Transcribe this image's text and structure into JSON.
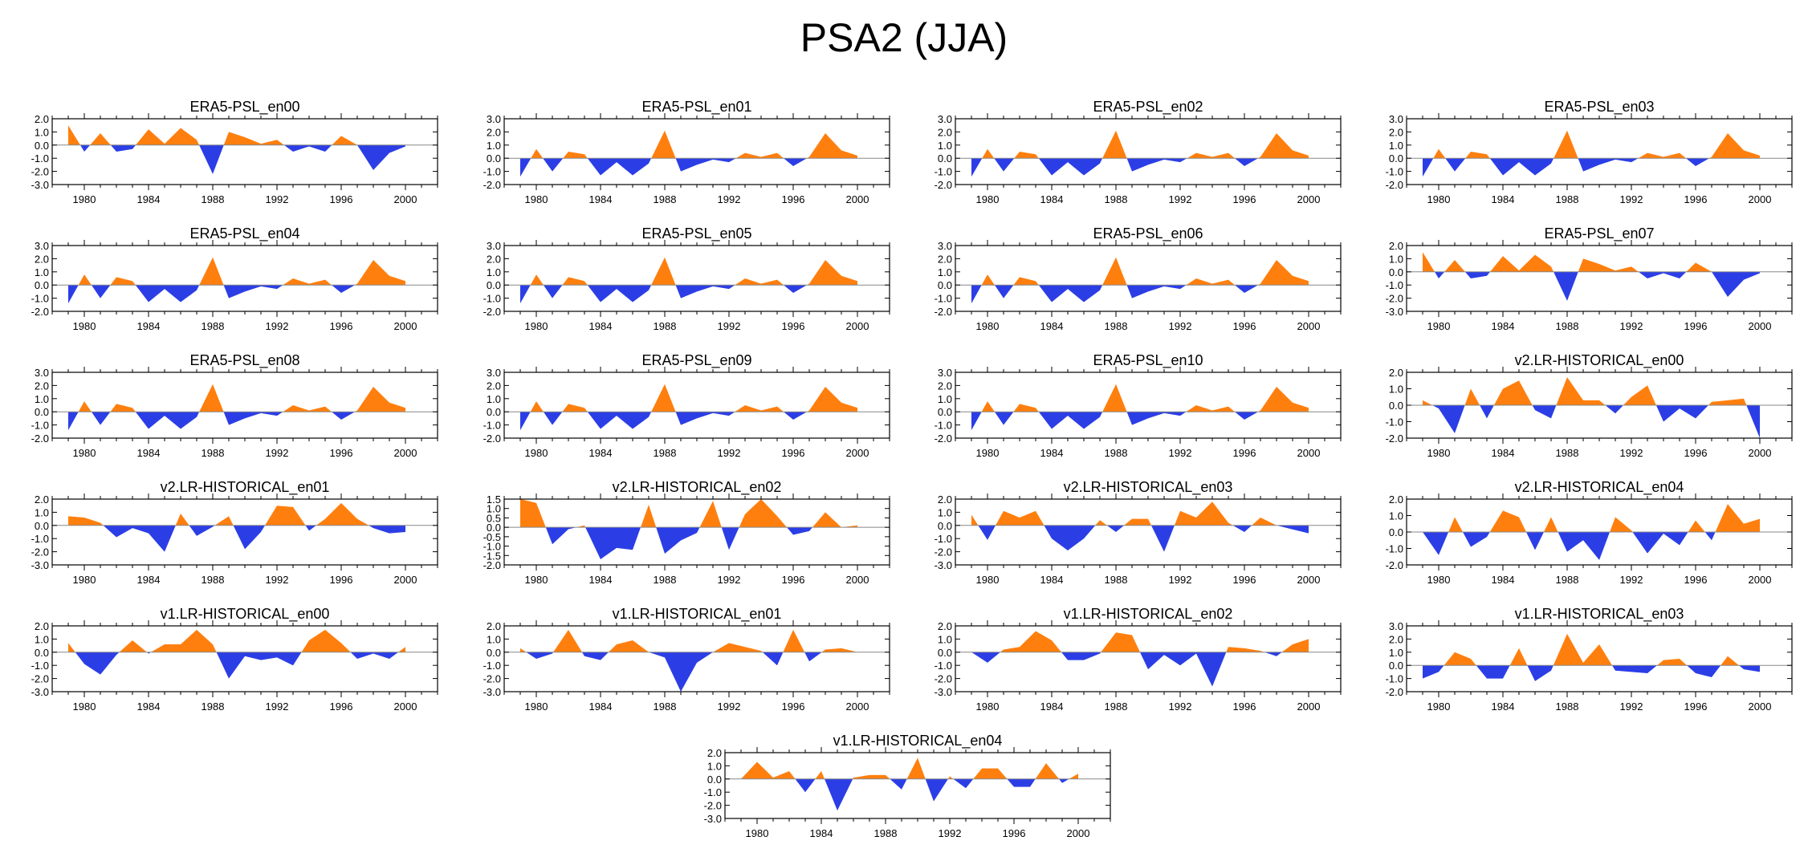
{
  "title": "PSA2 (JJA)",
  "colors": {
    "positive": "#ff7f0e",
    "negative": "#2b3ee6",
    "axis": "#000000"
  },
  "shared_years": [
    1979,
    1980,
    1981,
    1982,
    1983,
    1984,
    1985,
    1986,
    1987,
    1988,
    1989,
    1990,
    1991,
    1992,
    1993,
    1994,
    1995,
    1996,
    1997,
    1998,
    1999,
    2000
  ],
  "chart_data": [
    {
      "type": "area",
      "title": "ERA5-PSL_en00",
      "xlim": [
        1978,
        2002
      ],
      "ylim": [
        -3,
        2
      ],
      "yticks": [
        2,
        1,
        0,
        -1,
        -2,
        -3
      ],
      "ytick_labels": [
        "2.0",
        "1.0",
        "0.0",
        "-1.0",
        "-2.0",
        "-3.0"
      ],
      "xticks": [
        1980,
        1984,
        1988,
        1992,
        1996,
        2000
      ],
      "values": [
        1.5,
        -0.5,
        0.9,
        -0.5,
        -0.3,
        1.2,
        0.1,
        1.3,
        0.4,
        -2.2,
        1.0,
        0.6,
        0.1,
        0.4,
        -0.5,
        -0.1,
        -0.5,
        0.7,
        0.0,
        -1.9,
        -0.6,
        -0.1
      ]
    },
    {
      "type": "area",
      "title": "ERA5-PSL_en01",
      "xlim": [
        1978,
        2002
      ],
      "ylim": [
        -2,
        3
      ],
      "yticks": [
        3,
        2,
        1,
        0,
        -1,
        -2
      ],
      "ytick_labels": [
        "3.0",
        "2.0",
        "1.0",
        "0.0",
        "-1.0",
        "-2.0"
      ],
      "xticks": [
        1980,
        1984,
        1988,
        1992,
        1996,
        2000
      ],
      "values": [
        -1.4,
        0.7,
        -1.0,
        0.5,
        0.3,
        -1.3,
        -0.3,
        -1.3,
        -0.4,
        2.1,
        -1.0,
        -0.5,
        -0.1,
        -0.3,
        0.4,
        0.1,
        0.4,
        -0.6,
        0.1,
        1.9,
        0.6,
        0.2
      ]
    },
    {
      "type": "area",
      "title": "ERA5-PSL_en02",
      "xlim": [
        1978,
        2002
      ],
      "ylim": [
        -2,
        3
      ],
      "yticks": [
        3,
        2,
        1,
        0,
        -1,
        -2
      ],
      "ytick_labels": [
        "3.0",
        "2.0",
        "1.0",
        "0.0",
        "-1.0",
        "-2.0"
      ],
      "xticks": [
        1980,
        1984,
        1988,
        1992,
        1996,
        2000
      ],
      "values": [
        -1.4,
        0.7,
        -1.0,
        0.5,
        0.3,
        -1.3,
        -0.3,
        -1.3,
        -0.4,
        2.1,
        -1.0,
        -0.5,
        -0.1,
        -0.3,
        0.4,
        0.1,
        0.4,
        -0.6,
        0.1,
        1.9,
        0.6,
        0.2
      ]
    },
    {
      "type": "area",
      "title": "ERA5-PSL_en03",
      "xlim": [
        1978,
        2002
      ],
      "ylim": [
        -2,
        3
      ],
      "yticks": [
        3,
        2,
        1,
        0,
        -1,
        -2
      ],
      "ytick_labels": [
        "3.0",
        "2.0",
        "1.0",
        "0.0",
        "-1.0",
        "-2.0"
      ],
      "xticks": [
        1980,
        1984,
        1988,
        1992,
        1996,
        2000
      ],
      "values": [
        -1.4,
        0.7,
        -1.0,
        0.5,
        0.3,
        -1.3,
        -0.3,
        -1.3,
        -0.4,
        2.1,
        -1.0,
        -0.5,
        -0.1,
        -0.3,
        0.4,
        0.1,
        0.4,
        -0.6,
        0.1,
        1.9,
        0.6,
        0.2
      ]
    },
    {
      "type": "area",
      "title": "ERA5-PSL_en04",
      "xlim": [
        1978,
        2002
      ],
      "ylim": [
        -2,
        3
      ],
      "yticks": [
        3,
        2,
        1,
        0,
        -1,
        -2
      ],
      "ytick_labels": [
        "3.0",
        "2.0",
        "1.0",
        "0.0",
        "-1.0",
        "-2.0"
      ],
      "xticks": [
        1980,
        1984,
        1988,
        1992,
        1996,
        2000
      ],
      "values": [
        -1.4,
        0.8,
        -1.0,
        0.6,
        0.3,
        -1.3,
        -0.3,
        -1.3,
        -0.4,
        2.1,
        -1.0,
        -0.5,
        -0.1,
        -0.3,
        0.5,
        0.1,
        0.4,
        -0.6,
        0.1,
        1.9,
        0.7,
        0.3
      ]
    },
    {
      "type": "area",
      "title": "ERA5-PSL_en05",
      "xlim": [
        1978,
        2002
      ],
      "ylim": [
        -2,
        3
      ],
      "yticks": [
        3,
        2,
        1,
        0,
        -1,
        -2
      ],
      "ytick_labels": [
        "3.0",
        "2.0",
        "1.0",
        "0.0",
        "-1.0",
        "-2.0"
      ],
      "xticks": [
        1980,
        1984,
        1988,
        1992,
        1996,
        2000
      ],
      "values": [
        -1.4,
        0.8,
        -1.0,
        0.6,
        0.3,
        -1.3,
        -0.3,
        -1.3,
        -0.4,
        2.1,
        -1.0,
        -0.5,
        -0.1,
        -0.3,
        0.5,
        0.1,
        0.4,
        -0.6,
        0.1,
        1.9,
        0.7,
        0.3
      ]
    },
    {
      "type": "area",
      "title": "ERA5-PSL_en06",
      "xlim": [
        1978,
        2002
      ],
      "ylim": [
        -2,
        3
      ],
      "yticks": [
        3,
        2,
        1,
        0,
        -1,
        -2
      ],
      "ytick_labels": [
        "3.0",
        "2.0",
        "1.0",
        "0.0",
        "-1.0",
        "-2.0"
      ],
      "xticks": [
        1980,
        1984,
        1988,
        1992,
        1996,
        2000
      ],
      "values": [
        -1.4,
        0.8,
        -1.0,
        0.6,
        0.3,
        -1.3,
        -0.3,
        -1.3,
        -0.4,
        2.1,
        -1.0,
        -0.5,
        -0.1,
        -0.3,
        0.5,
        0.1,
        0.4,
        -0.6,
        0.1,
        1.9,
        0.7,
        0.3
      ]
    },
    {
      "type": "area",
      "title": "ERA5-PSL_en07",
      "xlim": [
        1978,
        2002
      ],
      "ylim": [
        -3,
        2
      ],
      "yticks": [
        2,
        1,
        0,
        -1,
        -2,
        -3
      ],
      "ytick_labels": [
        "2.0",
        "1.0",
        "0.0",
        "-1.0",
        "-2.0",
        "-3.0"
      ],
      "xticks": [
        1980,
        1984,
        1988,
        1992,
        1996,
        2000
      ],
      "values": [
        1.5,
        -0.5,
        0.9,
        -0.5,
        -0.3,
        1.2,
        0.1,
        1.3,
        0.4,
        -2.2,
        1.0,
        0.6,
        0.1,
        0.4,
        -0.5,
        -0.1,
        -0.5,
        0.7,
        0.0,
        -1.9,
        -0.6,
        -0.1
      ]
    },
    {
      "type": "area",
      "title": "ERA5-PSL_en08",
      "xlim": [
        1978,
        2002
      ],
      "ylim": [
        -2,
        3
      ],
      "yticks": [
        3,
        2,
        1,
        0,
        -1,
        -2
      ],
      "ytick_labels": [
        "3.0",
        "2.0",
        "1.0",
        "0.0",
        "-1.0",
        "-2.0"
      ],
      "xticks": [
        1980,
        1984,
        1988,
        1992,
        1996,
        2000
      ],
      "values": [
        -1.4,
        0.8,
        -1.0,
        0.6,
        0.3,
        -1.3,
        -0.3,
        -1.3,
        -0.4,
        2.1,
        -1.0,
        -0.5,
        -0.1,
        -0.3,
        0.5,
        0.1,
        0.4,
        -0.6,
        0.1,
        1.9,
        0.7,
        0.3
      ]
    },
    {
      "type": "area",
      "title": "ERA5-PSL_en09",
      "xlim": [
        1978,
        2002
      ],
      "ylim": [
        -2,
        3
      ],
      "yticks": [
        3,
        2,
        1,
        0,
        -1,
        -2
      ],
      "ytick_labels": [
        "3.0",
        "2.0",
        "1.0",
        "0.0",
        "-1.0",
        "-2.0"
      ],
      "xticks": [
        1980,
        1984,
        1988,
        1992,
        1996,
        2000
      ],
      "values": [
        -1.4,
        0.8,
        -1.0,
        0.6,
        0.3,
        -1.3,
        -0.3,
        -1.3,
        -0.4,
        2.1,
        -1.0,
        -0.5,
        -0.1,
        -0.3,
        0.5,
        0.1,
        0.4,
        -0.6,
        0.1,
        1.9,
        0.7,
        0.3
      ]
    },
    {
      "type": "area",
      "title": "ERA5-PSL_en10",
      "xlim": [
        1978,
        2002
      ],
      "ylim": [
        -2,
        3
      ],
      "yticks": [
        3,
        2,
        1,
        0,
        -1,
        -2
      ],
      "ytick_labels": [
        "3.0",
        "2.0",
        "1.0",
        "0.0",
        "-1.0",
        "-2.0"
      ],
      "xticks": [
        1980,
        1984,
        1988,
        1992,
        1996,
        2000
      ],
      "values": [
        -1.4,
        0.8,
        -1.0,
        0.6,
        0.3,
        -1.3,
        -0.3,
        -1.3,
        -0.4,
        2.1,
        -1.0,
        -0.5,
        -0.1,
        -0.3,
        0.5,
        0.1,
        0.4,
        -0.6,
        0.1,
        1.9,
        0.7,
        0.3
      ]
    },
    {
      "type": "area",
      "title": "v2.LR-HISTORICAL_en00",
      "xlim": [
        1978,
        2002
      ],
      "ylim": [
        -2,
        2
      ],
      "yticks": [
        2,
        1,
        0,
        -1,
        -2
      ],
      "ytick_labels": [
        "2.0",
        "1.0",
        "0.0",
        "-1.0",
        "-2.0"
      ],
      "xticks": [
        1980,
        1984,
        1988,
        1992,
        1996,
        2000
      ],
      "values": [
        0.3,
        -0.2,
        -1.7,
        1.0,
        -0.8,
        1.0,
        1.5,
        -0.3,
        -0.8,
        1.7,
        0.3,
        0.3,
        -0.5,
        0.5,
        1.2,
        -1.0,
        -0.2,
        -0.8,
        0.2,
        0.3,
        0.4,
        -2.0
      ]
    },
    {
      "type": "area",
      "title": "v2.LR-HISTORICAL_en01",
      "xlim": [
        1978,
        2002
      ],
      "ylim": [
        -3,
        2
      ],
      "yticks": [
        2,
        1,
        0,
        -1,
        -2,
        -3
      ],
      "ytick_labels": [
        "2.0",
        "1.0",
        "0.0",
        "-1.0",
        "-2.0",
        "-3.0"
      ],
      "xticks": [
        1980,
        1984,
        1988,
        1992,
        1996,
        2000
      ],
      "values": [
        0.7,
        0.6,
        0.2,
        -0.9,
        -0.2,
        -0.6,
        -2.0,
        0.9,
        -0.8,
        -0.1,
        0.7,
        -1.8,
        -0.5,
        1.5,
        1.4,
        -0.4,
        0.5,
        1.7,
        0.5,
        -0.2,
        -0.6,
        -0.5
      ]
    },
    {
      "type": "area",
      "title": "v2.LR-HISTORICAL_en02",
      "xlim": [
        1978,
        2002
      ],
      "ylim": [
        -2,
        1.5
      ],
      "yticks": [
        1.5,
        1,
        0.5,
        0,
        -0.5,
        -1,
        -1.5,
        -2
      ],
      "ytick_labels": [
        "1.5",
        "1.0",
        "0.5",
        "0.0",
        "-0.5",
        "-1.0",
        "-1.5",
        "-2.0"
      ],
      "xticks": [
        1980,
        1984,
        1988,
        1992,
        1996,
        2000
      ],
      "values": [
        1.5,
        1.3,
        -0.9,
        -0.1,
        0.1,
        -1.7,
        -1.1,
        -1.2,
        1.2,
        -1.4,
        -0.7,
        -0.3,
        1.4,
        -1.2,
        0.7,
        1.5,
        0.6,
        -0.4,
        -0.2,
        0.8,
        0.0,
        0.1
      ]
    },
    {
      "type": "area",
      "title": "v2.LR-HISTORICAL_en03",
      "xlim": [
        1978,
        2002
      ],
      "ylim": [
        -3,
        2
      ],
      "yticks": [
        2,
        1,
        0,
        -1,
        -2,
        -3
      ],
      "ytick_labels": [
        "2.0",
        "1.0",
        "0.0",
        "-1.0",
        "-2.0",
        "-3.0"
      ],
      "xticks": [
        1980,
        1984,
        1988,
        1992,
        1996,
        2000
      ],
      "values": [
        0.8,
        -1.1,
        1.1,
        0.6,
        1.1,
        -1.0,
        -1.9,
        -1.0,
        0.4,
        -0.5,
        0.5,
        0.5,
        -2.0,
        1.1,
        0.6,
        1.8,
        0.2,
        -0.5,
        0.6,
        0.0,
        -0.3,
        -0.6
      ]
    },
    {
      "type": "area",
      "title": "v2.LR-HISTORICAL_en04",
      "xlim": [
        1978,
        2002
      ],
      "ylim": [
        -2,
        2
      ],
      "yticks": [
        2,
        1,
        0,
        -1,
        -2
      ],
      "ytick_labels": [
        "2.0",
        "1.0",
        "0.0",
        "-1.0",
        "-2.0"
      ],
      "xticks": [
        1980,
        1984,
        1988,
        1992,
        1996,
        2000
      ],
      "values": [
        0.0,
        -1.4,
        0.9,
        -0.9,
        -0.3,
        1.3,
        0.9,
        -1.1,
        0.9,
        -1.2,
        -0.5,
        -1.7,
        0.9,
        0.1,
        -1.3,
        -0.1,
        -0.8,
        0.7,
        -0.5,
        1.7,
        0.5,
        0.8
      ]
    },
    {
      "type": "area",
      "title": "v1.LR-HISTORICAL_en00",
      "xlim": [
        1978,
        2002
      ],
      "ylim": [
        -3,
        2
      ],
      "yticks": [
        2,
        1,
        0,
        -1,
        -2,
        -3
      ],
      "ytick_labels": [
        "2.0",
        "1.0",
        "0.0",
        "-1.0",
        "-2.0",
        "-3.0"
      ],
      "xticks": [
        1980,
        1984,
        1988,
        1992,
        1996,
        2000
      ],
      "values": [
        0.7,
        -0.9,
        -1.7,
        -0.2,
        0.9,
        -0.1,
        0.6,
        0.6,
        1.7,
        0.6,
        -2.0,
        -0.3,
        -0.6,
        -0.4,
        -1.0,
        0.9,
        1.7,
        0.7,
        -0.5,
        -0.1,
        -0.5,
        0.4
      ]
    },
    {
      "type": "area",
      "title": "v1.LR-HISTORICAL_en01",
      "xlim": [
        1978,
        2002
      ],
      "ylim": [
        -3,
        2
      ],
      "yticks": [
        2,
        1,
        0,
        -1,
        -2,
        -3
      ],
      "ytick_labels": [
        "2.0",
        "1.0",
        "0.0",
        "-1.0",
        "-2.0",
        "-3.0"
      ],
      "xticks": [
        1980,
        1984,
        1988,
        1992,
        1996,
        2000
      ],
      "values": [
        0.3,
        -0.5,
        -0.1,
        1.7,
        -0.3,
        -0.6,
        0.6,
        0.9,
        0.0,
        -0.4,
        -3.0,
        -0.8,
        0.0,
        0.7,
        0.4,
        0.1,
        -1.0,
        1.7,
        -0.7,
        0.2,
        0.3,
        0.0
      ]
    },
    {
      "type": "area",
      "title": "v1.LR-HISTORICAL_en02",
      "xlim": [
        1978,
        2002
      ],
      "ylim": [
        -3,
        2
      ],
      "yticks": [
        2,
        1,
        0,
        -1,
        -2,
        -3
      ],
      "ytick_labels": [
        "2.0",
        "1.0",
        "0.0",
        "-1.0",
        "-2.0",
        "-3.0"
      ],
      "xticks": [
        1980,
        1984,
        1988,
        1992,
        1996,
        2000
      ],
      "values": [
        0.0,
        -0.8,
        0.2,
        0.4,
        1.6,
        0.9,
        -0.6,
        -0.6,
        -0.1,
        1.5,
        1.3,
        -1.3,
        -0.2,
        -1.0,
        -0.1,
        -2.6,
        0.4,
        0.3,
        0.1,
        -0.3,
        0.6,
        1.0
      ]
    },
    {
      "type": "area",
      "title": "v1.LR-HISTORICAL_en03",
      "xlim": [
        1978,
        2002
      ],
      "ylim": [
        -2,
        3
      ],
      "yticks": [
        3,
        2,
        1,
        0,
        -1,
        -2
      ],
      "ytick_labels": [
        "3.0",
        "2.0",
        "1.0",
        "0.0",
        "-1.0",
        "-2.0"
      ],
      "xticks": [
        1980,
        1984,
        1988,
        1992,
        1996,
        2000
      ],
      "values": [
        -1.0,
        -0.5,
        1.0,
        0.5,
        -1.0,
        -1.0,
        1.3,
        -1.2,
        -0.4,
        2.4,
        0.2,
        1.6,
        -0.4,
        -0.5,
        -0.6,
        0.4,
        0.5,
        -0.6,
        -0.9,
        0.7,
        -0.3,
        -0.5
      ]
    },
    {
      "type": "area",
      "title": "v1.LR-HISTORICAL_en04",
      "xlim": [
        1978,
        2002
      ],
      "ylim": [
        -3,
        2
      ],
      "yticks": [
        2,
        1,
        0,
        -1,
        -2,
        -3
      ],
      "ytick_labels": [
        "2.0",
        "1.0",
        "0.0",
        "-1.0",
        "-2.0",
        "-3.0"
      ],
      "xticks": [
        1980,
        1984,
        1988,
        1992,
        1996,
        2000
      ],
      "values": [
        0.0,
        1.3,
        0.1,
        0.6,
        -1.0,
        0.6,
        -2.4,
        0.1,
        0.3,
        0.3,
        -0.8,
        1.6,
        -1.7,
        0.2,
        -0.7,
        0.8,
        0.8,
        -0.6,
        -0.6,
        1.2,
        -0.3,
        0.4
      ]
    }
  ]
}
